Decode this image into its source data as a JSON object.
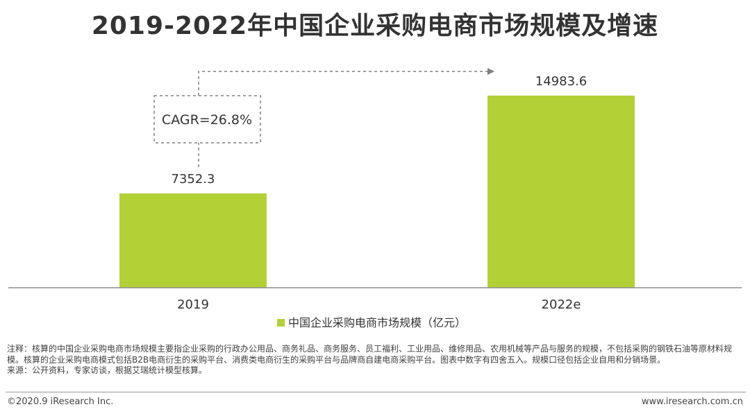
{
  "title": "2019-2022年中国企业采购电商市场规模及增速",
  "chart_data": {
    "type": "bar",
    "categories": [
      "2019",
      "2022e"
    ],
    "series": [
      {
        "name": "中国企业采购电商市场规模（亿元）",
        "values": [
          7352.3,
          14983.6
        ],
        "color": "#b1d136"
      }
    ],
    "data_labels": [
      "7352.3",
      "14983.6"
    ],
    "annotation": "CAGR=26.8%",
    "legend_position": "bottom",
    "grid": false,
    "ylim": [
      0,
      15300
    ]
  },
  "notes": {
    "note": "注释：核算的中国企业采购电商市场规模主要指企业采购的行政办公用品、商务礼品、商务服务、员工福利、工业用品、维修用品、农用机械等产品与服务的规模，不包括采购的钢铁石油等原材料规模。核算的企业采购电商模式包括B2B电商衍生的采购平台、消费类电商衍生的采购平台与品牌商自建电商采购平台。图表中数字有四舍五入。规模口径包括企业自用和分销场景。",
    "source": "来源：公开资料，专家访谈，根据艾瑞统计模型核算。"
  },
  "footer": {
    "left": "©2020.9 iResearch Inc.",
    "right": "www.iresearch.com.cn"
  }
}
